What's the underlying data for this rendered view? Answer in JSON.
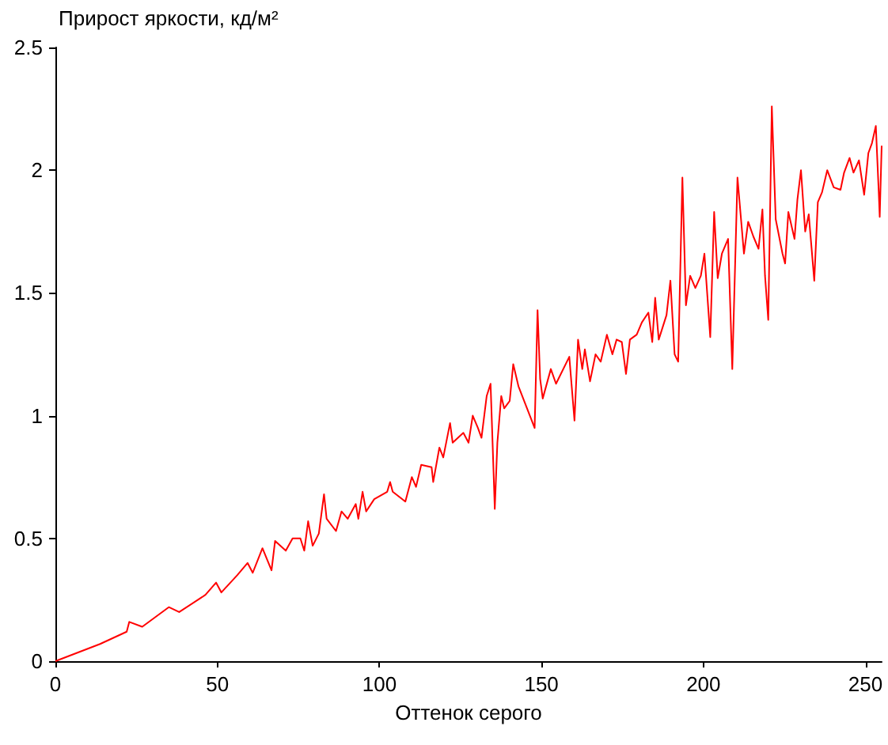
{
  "chart_data": {
    "type": "line",
    "title": "Прирост яркости, кд/м²",
    "xlabel": "Оттенок серого",
    "x": [
      0,
      13.8,
      22,
      22.8,
      26.8,
      35,
      38.2,
      46.3,
      49.6,
      51.2,
      56.1,
      59.3,
      60.9,
      63.9,
      66.7,
      67.8,
      71.1,
      73.2,
      75.6,
      76.8,
      78,
      79.4,
      81.3,
      82.9,
      83.7,
      86.6,
      88.3,
      90.2,
      92.7,
      93.5,
      94.8,
      95.9,
      98.4,
      102.4,
      103.3,
      104.1,
      108,
      110,
      111.3,
      112.9,
      116.1,
      116.6,
      118.5,
      119.7,
      121.8,
      122.6,
      125.9,
      127.5,
      128.8,
      130.4,
      131.5,
      133.1,
      134.3,
      135.2,
      135.6,
      136.4,
      137.6,
      138.5,
      140.2,
      141.3,
      142.9,
      147.9,
      148.8,
      149.6,
      150.4,
      152.9,
      154.5,
      158.6,
      160.2,
      161.3,
      162.6,
      163.4,
      165,
      166.7,
      168.3,
      170.2,
      171.9,
      173.2,
      174.8,
      176.1,
      177.3,
      179.4,
      181,
      183,
      184.2,
      185.1,
      186.2,
      188.6,
      189.8,
      191.1,
      192.2,
      193.5,
      194.6,
      195.9,
      197.5,
      199.2,
      200.3,
      202.1,
      203.3,
      204.4,
      205.7,
      207.6,
      208.9,
      210.5,
      212.5,
      213.8,
      215.4,
      217,
      218.2,
      219,
      220,
      221.1,
      222.3,
      224.4,
      225.2,
      226.2,
      228.1,
      229,
      230.1,
      231.4,
      232.5,
      234.2,
      235.3,
      236.6,
      238.2,
      240.2,
      242.3,
      243.4,
      245.1,
      246.3,
      248,
      249.6,
      250.9,
      252,
      253.2,
      254.1,
      254.4,
      255
    ],
    "series": [
      {
        "color": "#ff0000",
        "values": [
          0,
          0.07,
          0.12,
          0.16,
          0.14,
          0.22,
          0.2,
          0.27,
          0.32,
          0.28,
          0.35,
          0.4,
          0.36,
          0.46,
          0.37,
          0.49,
          0.45,
          0.5,
          0.5,
          0.45,
          0.57,
          0.47,
          0.52,
          0.68,
          0.58,
          0.53,
          0.61,
          0.58,
          0.64,
          0.58,
          0.69,
          0.61,
          0.66,
          0.69,
          0.73,
          0.69,
          0.65,
          0.75,
          0.71,
          0.8,
          0.79,
          0.73,
          0.87,
          0.83,
          0.97,
          0.89,
          0.93,
          0.89,
          1.0,
          0.95,
          0.91,
          1.08,
          1.13,
          0.78,
          0.62,
          0.89,
          1.08,
          1.03,
          1.06,
          1.21,
          1.12,
          0.95,
          1.43,
          1.15,
          1.07,
          1.19,
          1.13,
          1.24,
          0.98,
          1.31,
          1.19,
          1.27,
          1.14,
          1.25,
          1.22,
          1.33,
          1.25,
          1.31,
          1.3,
          1.17,
          1.31,
          1.33,
          1.38,
          1.42,
          1.3,
          1.48,
          1.31,
          1.41,
          1.55,
          1.25,
          1.22,
          1.97,
          1.45,
          1.57,
          1.52,
          1.57,
          1.66,
          1.32,
          1.83,
          1.56,
          1.66,
          1.72,
          1.19,
          1.97,
          1.66,
          1.79,
          1.73,
          1.68,
          1.84,
          1.57,
          1.39,
          2.26,
          1.8,
          1.66,
          1.62,
          1.83,
          1.72,
          1.88,
          2.0,
          1.75,
          1.82,
          1.55,
          1.87,
          1.91,
          2.0,
          1.93,
          1.92,
          1.99,
          2.05,
          1.99,
          2.04,
          1.9,
          2.07,
          2.11,
          2.18,
          1.91,
          1.81,
          2.1
        ]
      }
    ],
    "xlim": [
      0,
      255
    ],
    "xticks": [
      0,
      50,
      100,
      150,
      200,
      250
    ],
    "ylim": [
      0,
      2.5
    ],
    "yticks": [
      0,
      0.5,
      1,
      1.5,
      2,
      2.5
    ],
    "marker": "none",
    "line_style": "solid"
  }
}
